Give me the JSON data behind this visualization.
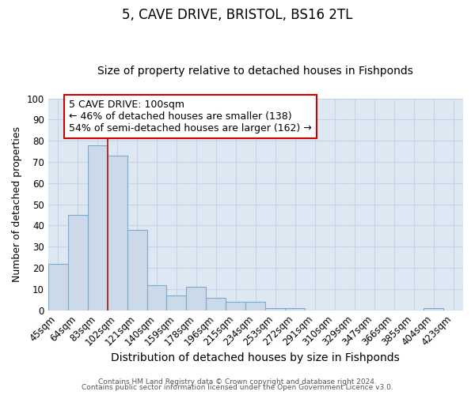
{
  "title": "5, CAVE DRIVE, BRISTOL, BS16 2TL",
  "subtitle": "Size of property relative to detached houses in Fishponds",
  "xlabel": "Distribution of detached houses by size in Fishponds",
  "ylabel": "Number of detached properties",
  "bar_labels": [
    "45sqm",
    "64sqm",
    "83sqm",
    "102sqm",
    "121sqm",
    "140sqm",
    "159sqm",
    "178sqm",
    "196sqm",
    "215sqm",
    "234sqm",
    "253sqm",
    "272sqm",
    "291sqm",
    "310sqm",
    "329sqm",
    "347sqm",
    "366sqm",
    "385sqm",
    "404sqm",
    "423sqm"
  ],
  "bar_values": [
    22,
    45,
    78,
    73,
    38,
    12,
    7,
    11,
    6,
    4,
    4,
    1,
    1,
    0,
    0,
    0,
    0,
    0,
    0,
    1,
    0
  ],
  "bar_color": "#ccd9e8",
  "bar_edge_color": "#7aabcf",
  "grid_color": "#c8d4e3",
  "background_color": "#dde8f3",
  "vline_color": "#aa2222",
  "annotation_text": "5 CAVE DRIVE: 100sqm\n← 46% of detached houses are smaller (138)\n54% of semi-detached houses are larger (162) →",
  "annotation_box_color": "#ffffff",
  "annotation_box_edge": "#cc0000",
  "ylim": [
    0,
    100
  ],
  "title_fontsize": 12,
  "subtitle_fontsize": 10,
  "xlabel_fontsize": 10,
  "ylabel_fontsize": 9,
  "tick_fontsize": 8.5,
  "annotation_fontsize": 9,
  "footer_line1": "Contains HM Land Registry data © Crown copyright and database right 2024.",
  "footer_line2": "Contains public sector information licensed under the Open Government Licence v3.0."
}
